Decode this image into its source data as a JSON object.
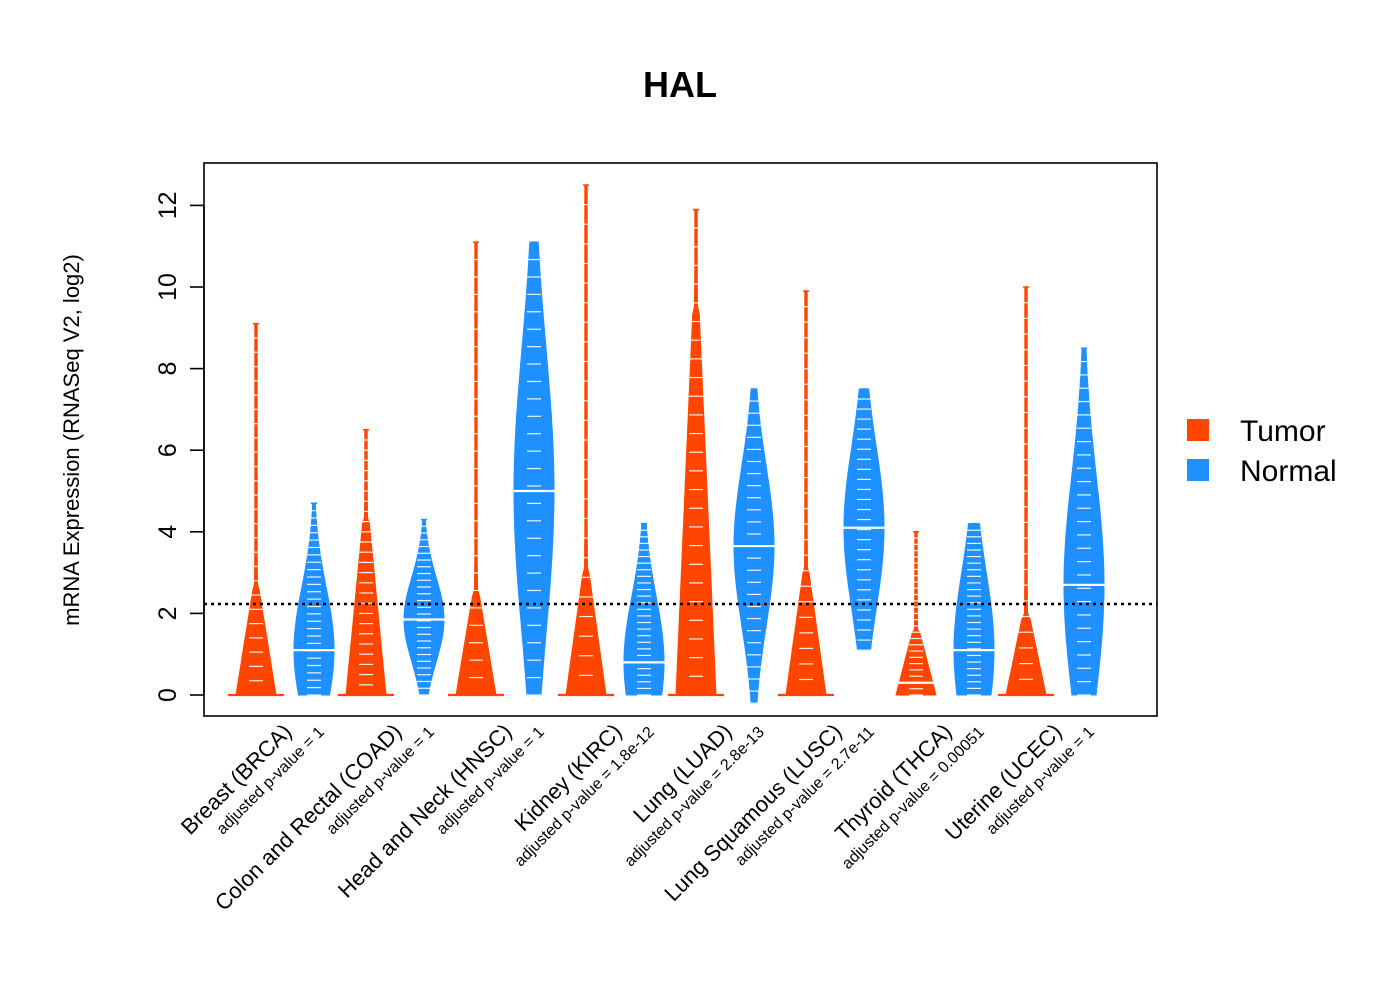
{
  "chart_data": {
    "type": "violin",
    "title": "HAL",
    "ylabel": "mRNA Expression (RNASeq V2, log2)",
    "xlabel": "",
    "ylim": [
      -0.5,
      13
    ],
    "yticks": [
      0,
      2,
      4,
      6,
      8,
      10,
      12
    ],
    "reference_line": 2.23,
    "legend": {
      "position": "right",
      "entries": [
        {
          "name": "Tumor",
          "color": "#FF4500"
        },
        {
          "name": "Normal",
          "color": "#1E90FF"
        }
      ]
    },
    "categories": [
      {
        "label": "Breast (BRCA)",
        "pvalue": "adjusted p-value = 1",
        "tumor": {
          "min": 0,
          "max": 9.1,
          "median": 0,
          "body_top": 2.6,
          "zero_heavy": true
        },
        "normal": {
          "min": 0,
          "max": 4.7,
          "median": 1.1,
          "body_top": 3.1,
          "zero_heavy": false
        }
      },
      {
        "label": "Colon and Rectal (COAD)",
        "pvalue": "adjusted p-value = 1",
        "tumor": {
          "min": 0,
          "max": 6.5,
          "median": 0,
          "body_top": 4.3,
          "zero_heavy": true
        },
        "normal": {
          "min": 0,
          "max": 4.3,
          "median": 1.85,
          "body_top": 3.2,
          "zero_heavy": false
        }
      },
      {
        "label": "Head and Neck (HNSC)",
        "pvalue": "adjusted p-value = 1",
        "tumor": {
          "min": 0,
          "max": 11.1,
          "median": 0,
          "body_top": 2.5,
          "zero_heavy": true
        },
        "normal": {
          "min": 0,
          "max": 11.1,
          "median": 5.0,
          "body_top": 9.5,
          "zero_heavy": false
        }
      },
      {
        "label": "Kidney (KIRC)",
        "pvalue": "adjusted p-value = 1.8e-12",
        "tumor": {
          "min": 0,
          "max": 12.5,
          "median": 0,
          "body_top": 3.0,
          "zero_heavy": true
        },
        "normal": {
          "min": 0,
          "max": 4.2,
          "median": 0.8,
          "body_top": 2.9,
          "zero_heavy": false
        }
      },
      {
        "label": "Lung (LUAD)",
        "pvalue": "adjusted p-value = 2.8e-13",
        "tumor": {
          "min": 0,
          "max": 11.9,
          "median": 0,
          "body_top": 9.5,
          "zero_heavy": true
        },
        "normal": {
          "min": -0.2,
          "max": 7.5,
          "median": 3.65,
          "body_top": 6.2,
          "zero_heavy": false
        }
      },
      {
        "label": "Lung Squamous (LUSC)",
        "pvalue": "adjusted p-value = 2.7e-11",
        "tumor": {
          "min": 0,
          "max": 9.9,
          "median": 0,
          "body_top": 3.0,
          "zero_heavy": true
        },
        "normal": {
          "min": 1.1,
          "max": 7.5,
          "median": 4.1,
          "body_top": 6.7,
          "zero_heavy": false
        }
      },
      {
        "label": "Thyroid (THCA)",
        "pvalue": "adjusted p-value = 0.00051",
        "tumor": {
          "min": 0,
          "max": 4.0,
          "median": 0.3,
          "body_top": 1.6,
          "zero_heavy": true
        },
        "normal": {
          "min": 0,
          "max": 4.2,
          "median": 1.1,
          "body_top": 3.6,
          "zero_heavy": false
        }
      },
      {
        "label": "Uterine (UCEC)",
        "pvalue": "adjusted p-value = 1",
        "tumor": {
          "min": 0,
          "max": 10.0,
          "median": 0,
          "body_top": 2.0,
          "zero_heavy": true
        },
        "normal": {
          "min": 0,
          "max": 8.5,
          "median": 2.7,
          "body_top": 6.2,
          "zero_heavy": false
        }
      }
    ]
  }
}
